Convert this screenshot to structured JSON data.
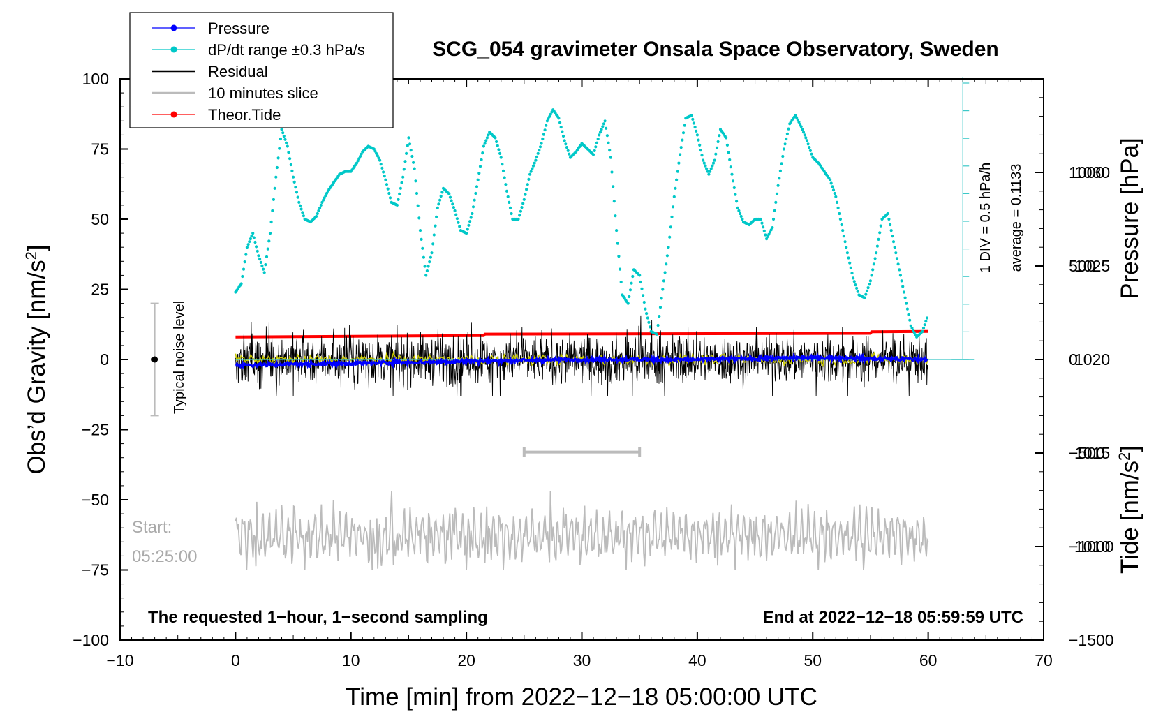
{
  "chart_data": {
    "type": "line",
    "title": "SCG_054 gravimeter Onsala Space Observatory, Sweden",
    "xlabel": "Time [min] from 2022−12−18 05:00:00 UTC",
    "ylabel_left": "Obs’d Gravity [nm/s²]",
    "ylabel_left_base": "Obs’d Gravity [nm/s",
    "ylabel_left_sup": "2",
    "ylabel_left_close": "]",
    "ylabel_pressure": "Pressure [hPa]",
    "ylabel_tide_base": "Tide [nm/s",
    "ylabel_tide_sup": "2",
    "ylabel_tide_close": "]",
    "xlim": [
      -10,
      70
    ],
    "ylim_left": [
      -100,
      100
    ],
    "ylim_pressure": [
      1005,
      1035
    ],
    "ylim_tide": [
      -1500,
      1500
    ],
    "x_ticks": [
      -10,
      0,
      10,
      20,
      30,
      40,
      50,
      60,
      70
    ],
    "x_tick_labels": [
      "−10",
      "0",
      "10",
      "20",
      "30",
      "40",
      "50",
      "60",
      "70"
    ],
    "y_left_ticks": [
      100,
      75,
      50,
      25,
      0,
      -25,
      -50,
      -75,
      -100
    ],
    "y_left_tick_labels": [
      "100",
      "75",
      "50",
      "25",
      "0",
      "−25",
      "−50",
      "−75",
      "−100"
    ],
    "pressure_ticks": [
      1030,
      1025,
      1020,
      1015,
      1010
    ],
    "pressure_tick_labels": [
      "1030",
      "1025",
      "1020",
      "1015",
      "1010"
    ],
    "tide_ticks": [
      1000,
      500,
      0,
      -500,
      -1000,
      -1500
    ],
    "tide_tick_labels": [
      "1000",
      "500",
      "0",
      "−500",
      "−1000",
      "−1500"
    ],
    "legend": [
      {
        "label": "Pressure",
        "color": "#0000ff",
        "marker": true
      },
      {
        "label": "dP/dt range ±0.3 hPa/s",
        "color": "#00c8c8",
        "marker": true
      },
      {
        "label": "Residual",
        "color": "#000000",
        "marker": false
      },
      {
        "label": "10 minutes slice",
        "color": "#bbbbbb",
        "marker": false
      },
      {
        "label": "Theor.Tide",
        "color": "#ff0000",
        "marker": true
      }
    ],
    "series": [
      {
        "name": "Pressure",
        "axis": "pressure",
        "color": "#0000ff",
        "x": [
          0,
          10,
          20,
          30,
          40,
          50,
          60
        ],
        "values": [
          1019.7,
          1019.8,
          1019.9,
          1020.0,
          1020.0,
          1020.1,
          1020.0
        ]
      },
      {
        "name": "dP/dt",
        "axis": "left",
        "color": "#00c8c8",
        "x": [
          0,
          0.5,
          1,
          1.5,
          2,
          2.5,
          3,
          3.5,
          4,
          4.5,
          5,
          5.5,
          6,
          6.5,
          7,
          7.5,
          8,
          8.5,
          9,
          9.5,
          10,
          10.5,
          11,
          11.5,
          12,
          12.5,
          13,
          13.5,
          14,
          14.5,
          15,
          15.5,
          16,
          16.5,
          17,
          17.5,
          18,
          18.5,
          19,
          19.5,
          20,
          20.5,
          21,
          21.5,
          22,
          22.5,
          23,
          23.5,
          24,
          24.5,
          25,
          25.5,
          26,
          26.5,
          27,
          27.5,
          28,
          28.5,
          29,
          29.5,
          30,
          30.5,
          31,
          31.5,
          32,
          32.5,
          33,
          33.5,
          34,
          34.5,
          35,
          35.5,
          36,
          36.5,
          37,
          37.5,
          38,
          38.5,
          39,
          39.5,
          40,
          40.5,
          41,
          41.5,
          42,
          42.5,
          43,
          43.5,
          44,
          44.5,
          45,
          45.5,
          46,
          46.5,
          47,
          47.5,
          48,
          48.5,
          49,
          49.5,
          50,
          50.5,
          51,
          51.5,
          52,
          52.5,
          53,
          53.5,
          54,
          54.5,
          55,
          55.5,
          56,
          56.5,
          57,
          57.5,
          58,
          58.5,
          59,
          59.5,
          60
        ],
        "values": [
          24,
          27,
          40,
          45,
          37,
          31,
          45,
          65,
          82,
          76,
          65,
          56,
          50,
          49,
          51,
          56,
          60,
          63,
          66,
          67,
          67,
          70,
          74,
          76,
          75,
          71,
          64,
          56,
          55,
          65,
          79,
          68,
          46,
          30,
          38,
          54,
          61,
          59,
          53,
          46,
          45,
          52,
          64,
          76,
          81,
          79,
          72,
          60,
          50,
          50,
          57,
          66,
          71,
          77,
          85,
          89,
          86,
          78,
          72,
          74,
          77,
          75,
          73,
          80,
          85,
          72,
          46,
          23,
          20,
          32,
          30,
          18,
          10,
          9,
          25,
          40,
          58,
          73,
          86,
          87,
          80,
          71,
          66,
          71,
          82,
          79,
          66,
          54,
          49,
          48,
          50,
          50,
          43,
          47,
          62,
          75,
          84,
          87,
          83,
          78,
          72,
          70,
          67,
          64,
          58,
          48,
          38,
          29,
          23,
          22,
          28,
          38,
          50,
          52,
          42,
          32,
          22,
          12,
          8,
          10,
          16
        ]
      },
      {
        "name": "Residual",
        "axis": "left",
        "color": "#000000",
        "x": [
          0,
          60
        ],
        "values": [
          0,
          0
        ],
        "envelope": [
          -13,
          16
        ]
      },
      {
        "name": "Residual smoothed",
        "axis": "left",
        "color": "#c8c800",
        "x": [
          0,
          60
        ],
        "values": [
          0,
          0
        ]
      },
      {
        "name": "Theor.Tide",
        "axis": "tide",
        "color": "#ff0000",
        "x": [
          0,
          21.5,
          21.6,
          55,
          55.1,
          60
        ],
        "values": [
          120,
          128,
          136,
          140,
          148,
          150
        ]
      },
      {
        "name": "10 minutes slice",
        "axis": "left",
        "color": "#bbbbbb",
        "x": [
          0,
          60
        ],
        "values": [
          -63,
          -63
        ],
        "envelope": [
          -75,
          -47
        ]
      }
    ],
    "slice_bracket": {
      "x_start": 25,
      "x_end": 35,
      "y": -33
    },
    "noise_level": {
      "x": -7,
      "center": 0,
      "low": -20,
      "high": 20,
      "label": "Typical noise level"
    },
    "pressure_scale": {
      "label1": "1 DIV = 0.5 hPa/h",
      "label2": "average = 0.1133"
    },
    "start_label1": "Start:",
    "start_label2": "05:25:00",
    "footer_left": "The requested 1−hour, 1−second sampling",
    "footer_right": "End at 2022−12−18 05:59:59 UTC"
  }
}
